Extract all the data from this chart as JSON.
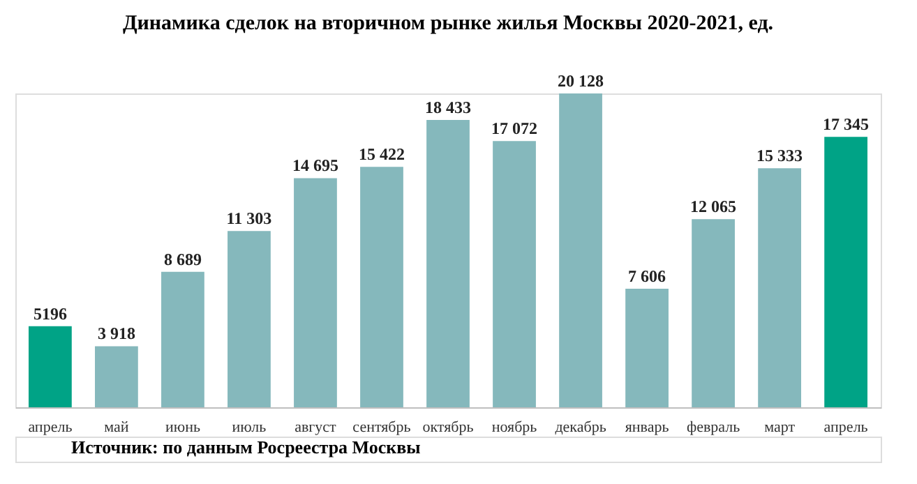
{
  "chart_data": {
    "type": "bar",
    "title": "Динамика сделок на вторичном рынке жилья Москвы 2020-2021, ед.",
    "categories": [
      "апрель",
      "май",
      "июнь",
      "июль",
      "август",
      "сентябрь",
      "октябрь",
      "ноябрь",
      "декабрь",
      "январь",
      "февраль",
      "март",
      "апрель"
    ],
    "values": [
      5196,
      3918,
      8689,
      11303,
      14695,
      15422,
      18433,
      17072,
      20128,
      7606,
      12065,
      15333,
      17345
    ],
    "value_labels": [
      "5196",
      "3 918",
      "8 689",
      "11 303",
      "14 695",
      "15 422",
      "18 433",
      "17 072",
      "20 128",
      "7 606",
      "12 065",
      "15 333",
      "17 345"
    ],
    "colors": [
      "#00a386",
      "#85b8bc",
      "#85b8bc",
      "#85b8bc",
      "#85b8bc",
      "#85b8bc",
      "#85b8bc",
      "#85b8bc",
      "#85b8bc",
      "#85b8bc",
      "#85b8bc",
      "#85b8bc",
      "#00a386"
    ],
    "annotations": [
      "Источник: по данным Росреестра Москвы"
    ],
    "grid": false
  }
}
